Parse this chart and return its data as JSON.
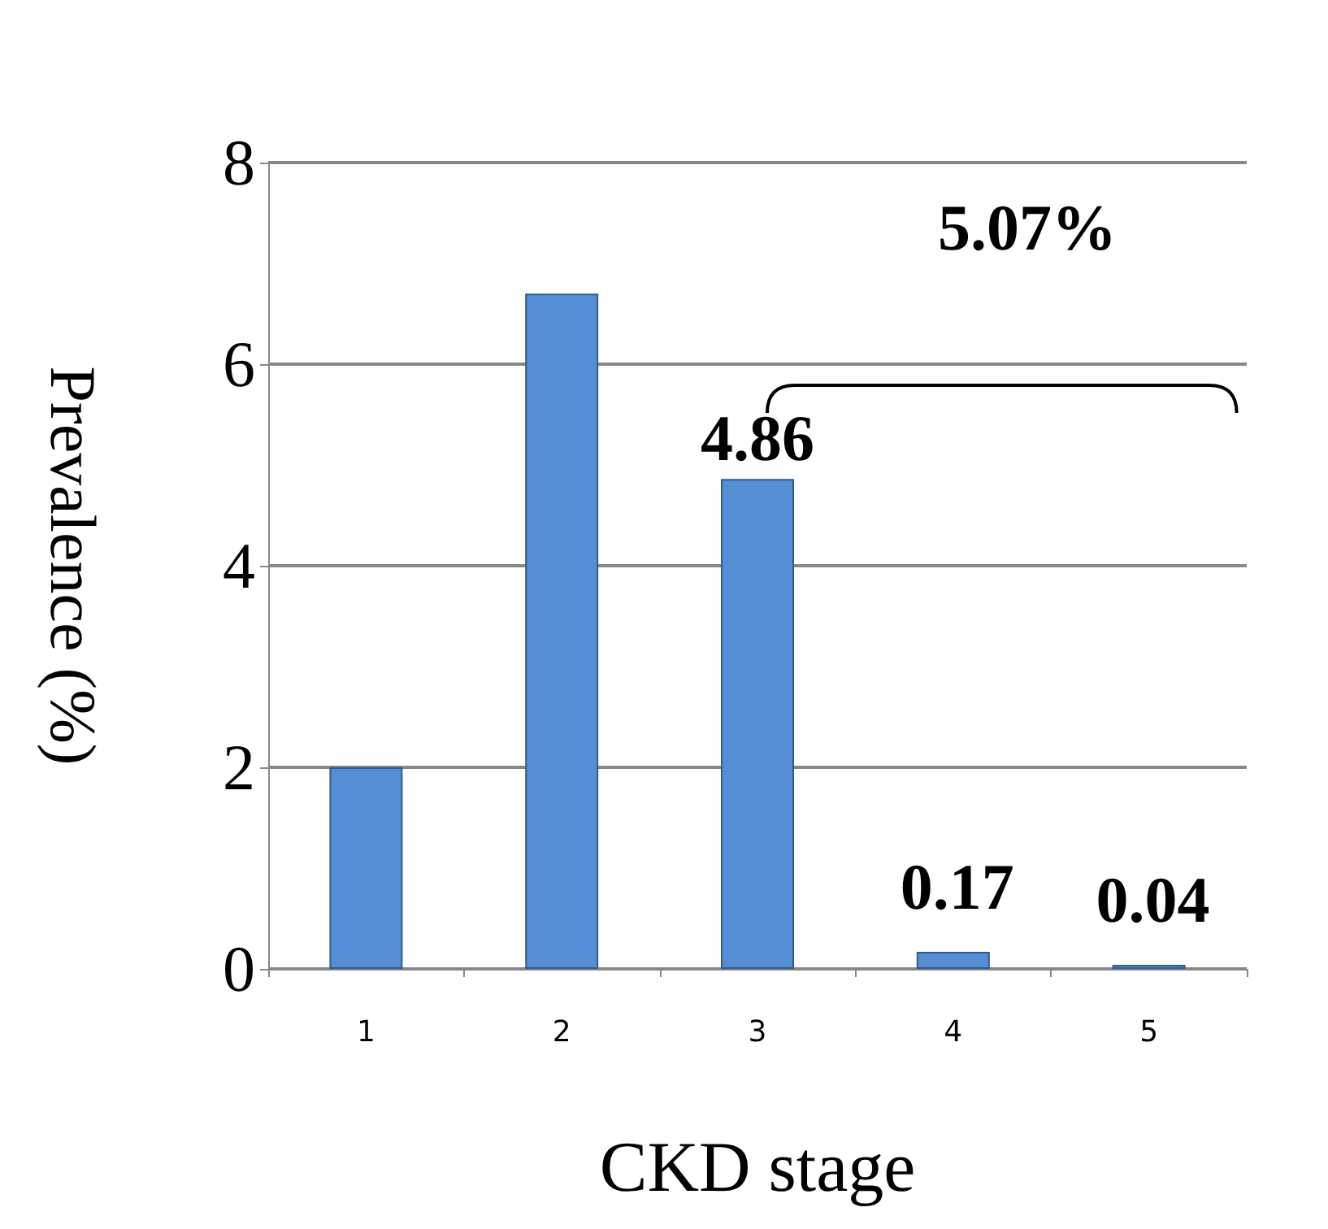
{
  "chart_data": {
    "type": "bar",
    "xlabel": "CKD stage",
    "ylabel": "Prevalence (%)",
    "categories": [
      "1",
      "2",
      "3",
      "4",
      "5"
    ],
    "values": [
      2.0,
      6.7,
      4.86,
      0.17,
      0.04
    ],
    "value_labels": [
      null,
      null,
      "4.86",
      "0.17",
      "0.04"
    ],
    "color": "#558ed5",
    "ylim": [
      0,
      8
    ],
    "yticks": [
      0,
      2,
      4,
      6,
      8
    ],
    "grid": "y",
    "annotations": [
      "5.07%"
    ]
  }
}
